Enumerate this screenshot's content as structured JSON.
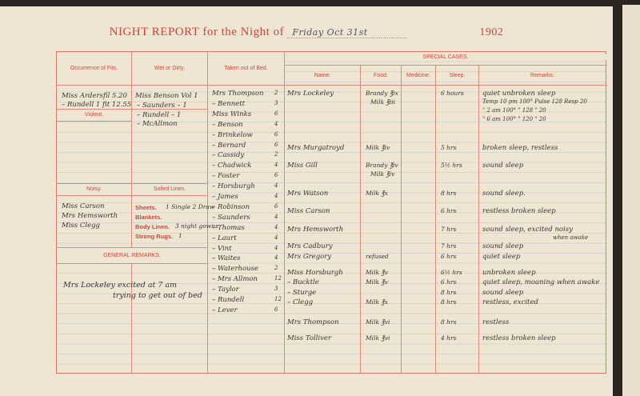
{
  "title": {
    "prefix": "NIGHT REPORT for the Night of",
    "date": "Friday Oct 31st",
    "year": "1902"
  },
  "headers": {
    "fits": "Occurrence of Fits.",
    "wet": "Wet or Dirty.",
    "taken": "Taken out of Bed.",
    "special": "SPECIAL CASES.",
    "name": "Name.",
    "food": "Food.",
    "medicine": "Medicine.",
    "sleep": "Sleep.",
    "remarks": "Remarks.",
    "violent": "Violent.",
    "noisy": "Noisy.",
    "soiled": "Soiled Linen.",
    "general": "GENERAL REMARKS.",
    "sheets": "Sheets.",
    "blankets": "Blankets.",
    "body_linen": "Body Linen.",
    "strong_rugs": "Strong Rugs."
  },
  "fits": [
    "Miss Ardersfil 5.20",
    "– Rundell 1 fit 12.55"
  ],
  "wet": [
    "Miss Benson Vol 1",
    "– Saunders – 1",
    "– Rundell – 1",
    "– McAllmon"
  ],
  "noisy": [
    "Miss Carson",
    "Mrs Hemsworth",
    "Miss Clegg"
  ],
  "soiled": {
    "sheets": "1 Single 2 Draw",
    "blankets": "",
    "body_linen": "3 night gowns",
    "strong_rugs": "1"
  },
  "general_remarks": [
    "Mrs Lockeley excited at 7 am",
    "trying to get out of bed"
  ],
  "taken_out": [
    {
      "name": "Mrs Thompson",
      "n": "2"
    },
    {
      "name": "– Bennett",
      "n": "3"
    },
    {
      "name": "Miss Winks",
      "n": "6"
    },
    {
      "name": "– Benson",
      "n": "4"
    },
    {
      "name": "– Brinkelow",
      "n": "6"
    },
    {
      "name": "– Bernard",
      "n": "6"
    },
    {
      "name": "– Cassidy",
      "n": "2"
    },
    {
      "name": "– Chadwick",
      "n": "4"
    },
    {
      "name": "– Foster",
      "n": "6"
    },
    {
      "name": "– Horsburgh",
      "n": "4"
    },
    {
      "name": "– James",
      "n": "4"
    },
    {
      "name": "– Robinson",
      "n": "6"
    },
    {
      "name": "– Saunders",
      "n": "4"
    },
    {
      "name": "– Thomas",
      "n": "4"
    },
    {
      "name": "– Laurt",
      "n": "4"
    },
    {
      "name": "– Vint",
      "n": "4"
    },
    {
      "name": "– Waites",
      "n": "4"
    },
    {
      "name": "– Waterhouse",
      "n": "2"
    },
    {
      "name": "– Mrs Allmon",
      "n": "12"
    },
    {
      "name": "– Taylor",
      "n": "3"
    },
    {
      "name": "– Rundell",
      "n": "12"
    },
    {
      "name": "– Lever",
      "n": "6"
    }
  ],
  "special_cases": [
    {
      "name": "Mrs Lockeley",
      "food": "Brandy ℥ix",
      "food2": "Milk ℥iii",
      "sleep": "6 hours",
      "remarks": "quiet unbroken sleep",
      "remarks2": "Temp 10 pm 100° Pulse 128 Resp 20",
      "remarks3": "\" 2 am 100° \" 128 \" 20",
      "remarks4": "\" 6 am 100° \" 120 \" 20"
    },
    {
      "name": "Mrs Murgatroyd",
      "food": "Milk ℥iv",
      "sleep": "5 hrs",
      "remarks": "broken sleep, restless"
    },
    {
      "name": "Miss Gill",
      "food": "Brandy ℥iv",
      "food2": "Milk ℥iv",
      "sleep": "5½ hrs",
      "remarks": "sound sleep"
    },
    {
      "name": "Mrs Watson",
      "food": "Milk ℥x",
      "sleep": "8 hrs",
      "remarks": "sound sleep."
    },
    {
      "name": "Miss Carson",
      "food": "",
      "sleep": "6 hrs",
      "remarks": "restless broken sleep"
    },
    {
      "name": "Mrs Hemsworth",
      "food": "",
      "sleep": "7 hrs",
      "remarks": "sound sleep, excited noisy",
      "remarks2": "when awake"
    },
    {
      "name": "Mrs Cadbury",
      "food": "",
      "sleep": "7 hrs",
      "remarks": "sound sleep"
    },
    {
      "name": "Mrs Gregory",
      "food": "refused",
      "sleep": "6 hrs",
      "remarks": "quiet sleep"
    },
    {
      "name": "Miss Horsburgh",
      "food": "Milk ℥v",
      "sleep": "6½ hrs",
      "remarks": "unbroken sleep"
    },
    {
      "name": "– Bucktle",
      "food": "Milk ℥v",
      "sleep": "6 hrs",
      "remarks": "quiet sleep, moaning when awake"
    },
    {
      "name": "– Sturge",
      "food": "",
      "sleep": "8 hrs",
      "remarks": "sound sleep"
    },
    {
      "name": "– Clegg",
      "food": "Milk ℥x",
      "sleep": "8 hrs",
      "remarks": "restless, excited"
    },
    {
      "name": "Mrs Thompson",
      "food": "Milk ℥vi",
      "sleep": "8 hrs",
      "remarks": "restless"
    },
    {
      "name": "Miss Tolliver",
      "food": "Milk ℥vi",
      "sleep": "4 hrs",
      "remarks": "restless broken sleep"
    }
  ]
}
